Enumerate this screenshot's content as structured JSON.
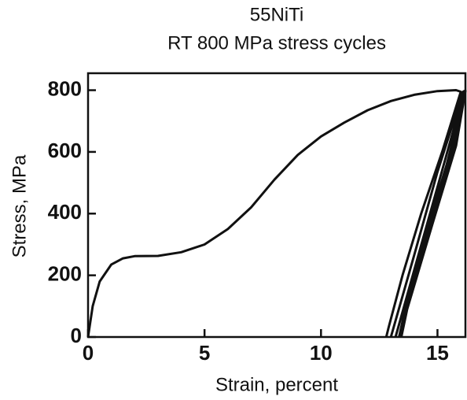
{
  "chart_data": {
    "type": "line",
    "title": "55NiTi",
    "subtitle": "RT 800 MPa stress cycles",
    "x_label": "Strain, percent",
    "y_label": "Stress, MPa",
    "color": "#111111",
    "x": [
      0,
      0.2,
      0.5,
      1,
      1.5,
      2,
      3,
      4,
      5,
      6,
      7,
      8,
      9,
      10,
      11,
      12,
      13,
      14,
      15,
      15.8,
      16.0,
      15.2,
      14.3,
      13.5,
      12.9,
      12.8,
      null,
      13.0,
      14.0,
      15.0,
      16.1,
      15.6,
      14.6,
      13.5,
      13.2,
      null,
      13.2,
      14.2,
      15.2,
      16.15,
      15.7,
      14.7,
      13.6,
      13.35,
      null,
      13.35,
      14.3,
      15.3,
      16.2,
      15.8,
      14.8,
      13.7,
      13.45
    ],
    "values": [
      0,
      100,
      180,
      235,
      255,
      262,
      263,
      275,
      300,
      350,
      420,
      510,
      590,
      650,
      695,
      735,
      765,
      785,
      797,
      800,
      795,
      600,
      400,
      200,
      30,
      0,
      null,
      0,
      265,
      535,
      795,
      610,
      360,
      80,
      0,
      null,
      0,
      270,
      540,
      797,
      615,
      365,
      85,
      0,
      null,
      0,
      265,
      530,
      798,
      620,
      370,
      90,
      0
    ],
    "xlim": [
      0,
      16.2
    ],
    "ylim": [
      0,
      855
    ],
    "xticks": [
      0,
      5,
      10,
      15
    ],
    "yticks": [
      0,
      200,
      400,
      600,
      800
    ]
  }
}
